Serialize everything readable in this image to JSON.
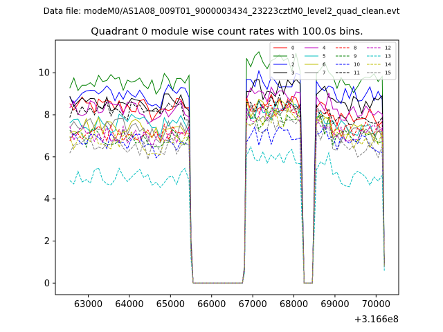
{
  "figure": {
    "suptitle": "Data file: modeM0/AS1A08_009T01_9000003434_23223cztM0_level2_quad_clean.evt"
  },
  "chart_data": {
    "type": "line",
    "title": "Quadrant 0 module wise count rates with 100.0s bins.",
    "xlabel": "",
    "ylabel": "",
    "x_offset_label": "+3.166e8",
    "x_offset": 316600000,
    "xlim": [
      62200,
      70550
    ],
    "ylim": [
      -0.55,
      11.55
    ],
    "x_ticks": [
      63000,
      64000,
      65000,
      66000,
      67000,
      68000,
      69000,
      70000
    ],
    "x_tick_labels": [
      "63000",
      "64000",
      "65000",
      "66000",
      "67000",
      "68000",
      "69000",
      "70000"
    ],
    "y_ticks": [
      0,
      2,
      4,
      6,
      8,
      10
    ],
    "y_tick_labels": [
      "0",
      "2",
      "4",
      "6",
      "8",
      "10"
    ],
    "legend_position": "upper right",
    "legend_columns": 4,
    "bin_seconds": 100.0,
    "segments": [
      {
        "start": 62550,
        "end": 65450,
        "ramp_x": 65500,
        "ramp_y_frac": 0.22
      },
      {
        "start": 66850,
        "end": 68150,
        "ramp_x": 66800,
        "ramp_y_frac": 0.08
      },
      {
        "start": 68550,
        "end": 70150,
        "ramp_x": 70200,
        "ramp_y_frac": 0.12
      }
    ],
    "gaps": [
      {
        "x": [
          65550,
          65650,
          65750,
          65850,
          65950,
          66050,
          66150,
          66250,
          66350,
          66450,
          66550,
          66650,
          66750
        ],
        "value": 0
      },
      {
        "x": [
          68250,
          68350,
          68450
        ],
        "value": 0
      }
    ],
    "series": [
      {
        "name": "0",
        "color": "#ff0000",
        "dash": "solid",
        "levels": [
          8.4,
          8.5,
          8.3,
          7.9
        ]
      },
      {
        "name": "1",
        "color": "#008000",
        "dash": "solid",
        "levels": [
          9.6,
          10.5,
          10.2,
          9.5
        ]
      },
      {
        "name": "2",
        "color": "#0000ff",
        "dash": "solid",
        "levels": [
          9.0,
          9.7,
          9.4,
          8.9
        ]
      },
      {
        "name": "3",
        "color": "#000000",
        "dash": "solid",
        "levels": [
          8.6,
          9.2,
          9.0,
          8.5
        ]
      },
      {
        "name": "4",
        "color": "#bf00bf",
        "dash": "solid",
        "levels": [
          8.3,
          9.0,
          8.6,
          8.0
        ]
      },
      {
        "name": "5",
        "color": "#00bfbf",
        "dash": "solid",
        "levels": [
          7.6,
          8.2,
          8.0,
          7.4
        ]
      },
      {
        "name": "6",
        "color": "#bfbf00",
        "dash": "solid",
        "levels": [
          7.5,
          8.3,
          7.9,
          7.2
        ]
      },
      {
        "name": "7",
        "color": "#808080",
        "dash": "solid",
        "levels": [
          7.4,
          8.0,
          7.7,
          7.1
        ]
      },
      {
        "name": "8",
        "color": "#ff0000",
        "dash": "dashed",
        "levels": [
          7.2,
          8.4,
          7.9,
          7.3
        ]
      },
      {
        "name": "9",
        "color": "#008000",
        "dash": "dashed",
        "levels": [
          6.9,
          7.8,
          7.5,
          6.9
        ]
      },
      {
        "name": "10",
        "color": "#0000ff",
        "dash": "dashed",
        "levels": [
          6.7,
          7.0,
          7.2,
          6.6
        ]
      },
      {
        "name": "11",
        "color": "#000000",
        "dash": "dashed",
        "levels": [
          8.2,
          8.6,
          8.3,
          7.8
        ]
      },
      {
        "name": "12",
        "color": "#bf00bf",
        "dash": "dashed",
        "levels": [
          7.1,
          8.1,
          7.8,
          7.2
        ]
      },
      {
        "name": "13",
        "color": "#00bfbf",
        "dash": "dashed",
        "levels": [
          5.1,
          6.0,
          5.8,
          4.9
        ]
      },
      {
        "name": "14",
        "color": "#bfbf00",
        "dash": "dashed",
        "levels": [
          6.8,
          7.9,
          7.4,
          6.8
        ]
      },
      {
        "name": "15",
        "color": "#808080",
        "dash": "dashed",
        "levels": [
          6.5,
          7.6,
          7.2,
          6.4
        ]
      }
    ]
  }
}
